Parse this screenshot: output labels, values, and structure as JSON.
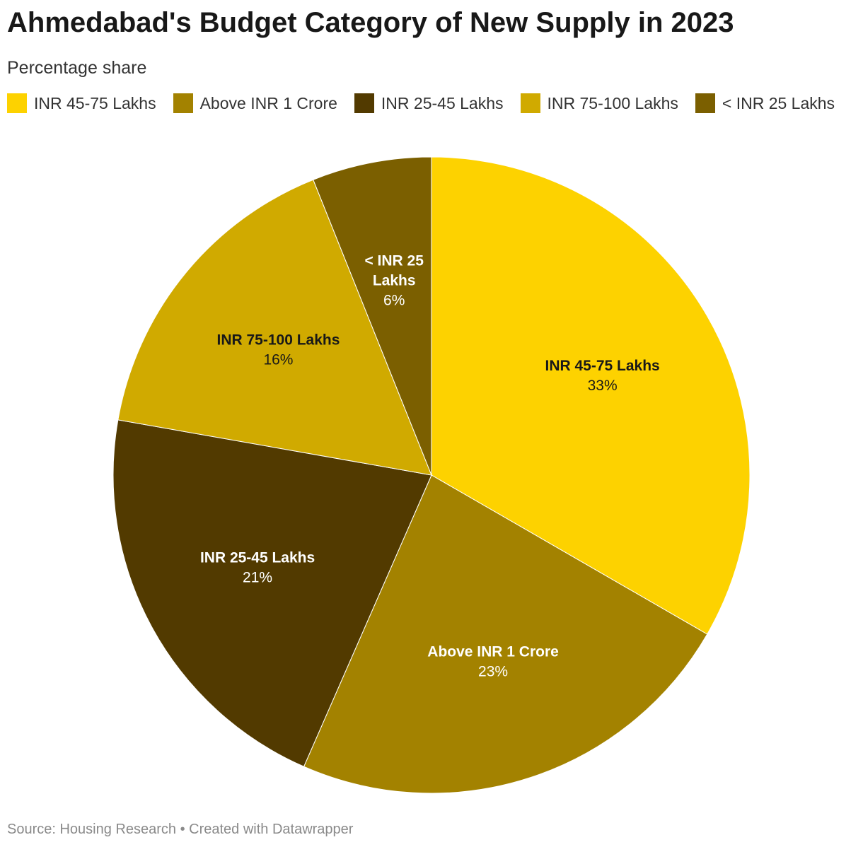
{
  "header": {
    "title": "Ahmedabad's Budget Category of New Supply in 2023",
    "subtitle": "Percentage share"
  },
  "footer": {
    "text": "Source: Housing Research • Created with Datawrapper"
  },
  "chart_data": {
    "type": "pie",
    "title": "Ahmedabad's Budget Category of New Supply in 2023",
    "subtitle": "Percentage share",
    "legend_position": "top-left",
    "slices": [
      {
        "label": "INR 45-75 Lakhs",
        "label_lines": [
          "INR 45-75 Lakhs"
        ],
        "value": 33,
        "value_label": "33%",
        "color": "#fdd200",
        "text_color": "#181818"
      },
      {
        "label": "Above INR 1 Crore",
        "label_lines": [
          "Above INR 1 Crore"
        ],
        "value": 23,
        "value_label": "23%",
        "color": "#a38200",
        "text_color": "#ffffff"
      },
      {
        "label": "INR 25-45 Lakhs",
        "label_lines": [
          "INR 25-45 Lakhs"
        ],
        "value": 21,
        "value_label": "21%",
        "color": "#523a00",
        "text_color": "#ffffff"
      },
      {
        "label": "INR 75-100 Lakhs",
        "label_lines": [
          "INR 75-100 Lakhs"
        ],
        "value": 16,
        "value_label": "16%",
        "color": "#d0aa00",
        "text_color": "#181818"
      },
      {
        "label": "< INR 25 Lakhs",
        "label_lines": [
          "< INR 25",
          "Lakhs"
        ],
        "value": 6,
        "value_label": "6%",
        "color": "#7b5f00",
        "text_color": "#ffffff"
      }
    ]
  }
}
